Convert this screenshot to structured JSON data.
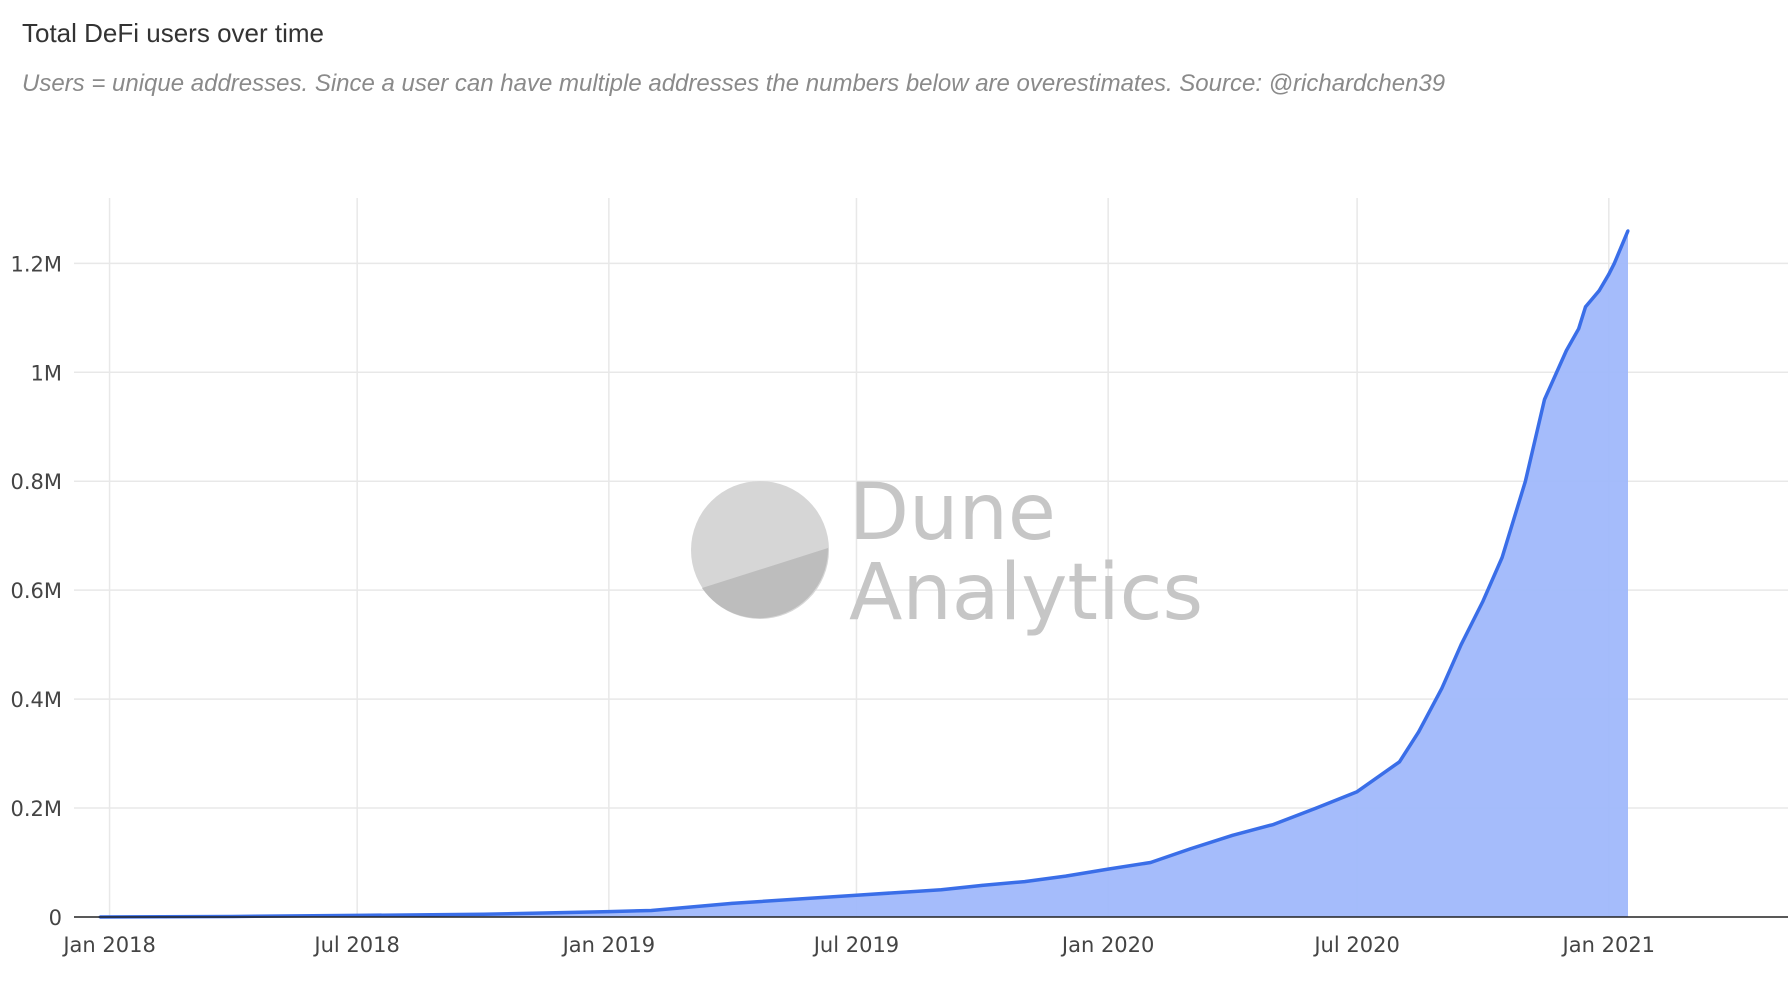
{
  "header": {
    "title": "Total DeFi users over time",
    "subtitle": "Users = unique addresses. Since a user can have multiple addresses the numbers below are overestimates. Source: @richardchen39"
  },
  "watermark": {
    "line1": "Dune",
    "line2": "Analytics"
  },
  "colors": {
    "line": "#3a6ee8",
    "fill": "#a0b8fb",
    "grid": "#e8e8e8",
    "axis": "#222222"
  },
  "chart_data": {
    "type": "area",
    "title": "Total DeFi users over time",
    "subtitle": "Users = unique addresses. Since a user can have multiple addresses the numbers below are overestimates. Source: @richardchen39",
    "xlabel": "",
    "ylabel": "",
    "xlim": [
      "2017-12-06",
      "2021-05-12"
    ],
    "ylim": [
      0,
      1320000
    ],
    "grid": true,
    "legend": "none",
    "x_ticks": [
      {
        "date": "2018-01-01",
        "label": "Jan 2018"
      },
      {
        "date": "2018-07-01",
        "label": "Jul 2018"
      },
      {
        "date": "2019-01-01",
        "label": "Jan 2019"
      },
      {
        "date": "2019-07-01",
        "label": "Jul 2019"
      },
      {
        "date": "2020-01-01",
        "label": "Jan 2020"
      },
      {
        "date": "2020-07-01",
        "label": "Jul 2020"
      },
      {
        "date": "2021-01-01",
        "label": "Jan 2021"
      }
    ],
    "y_ticks": [
      {
        "value": 0,
        "label": "0"
      },
      {
        "value": 200000,
        "label": "0.2M"
      },
      {
        "value": 400000,
        "label": "0.4M"
      },
      {
        "value": 600000,
        "label": "0.6M"
      },
      {
        "value": 800000,
        "label": "0.8M"
      },
      {
        "value": 1000000,
        "label": "1M"
      },
      {
        "value": 1200000,
        "label": "1.2M"
      }
    ],
    "series": [
      {
        "x": [
          "2017-12-25",
          "2018-04-01",
          "2018-07-01",
          "2018-10-01",
          "2019-01-01",
          "2019-02-01",
          "2019-04-01",
          "2019-07-01",
          "2019-08-01",
          "2019-09-01",
          "2019-10-01",
          "2019-11-01",
          "2019-12-01",
          "2020-01-01",
          "2020-02-01",
          "2020-03-01",
          "2020-04-01",
          "2020-05-01",
          "2020-06-01",
          "2020-07-01",
          "2020-08-01",
          "2020-08-15",
          "2020-09-01",
          "2020-09-15",
          "2020-10-01",
          "2020-10-15",
          "2020-11-01",
          "2020-11-15",
          "2020-12-01",
          "2020-12-10",
          "2020-12-15",
          "2020-12-25",
          "2021-01-01",
          "2021-01-05",
          "2021-01-15"
        ],
        "values": [
          0,
          1000,
          3000,
          5000,
          10000,
          12000,
          25000,
          40000,
          45000,
          50000,
          58000,
          65000,
          75000,
          88000,
          100000,
          125000,
          150000,
          170000,
          200000,
          230000,
          285000,
          340000,
          420000,
          500000,
          580000,
          660000,
          800000,
          950000,
          1040000,
          1080000,
          1120000,
          1150000,
          1180000,
          1200000,
          1260000
        ]
      }
    ]
  }
}
